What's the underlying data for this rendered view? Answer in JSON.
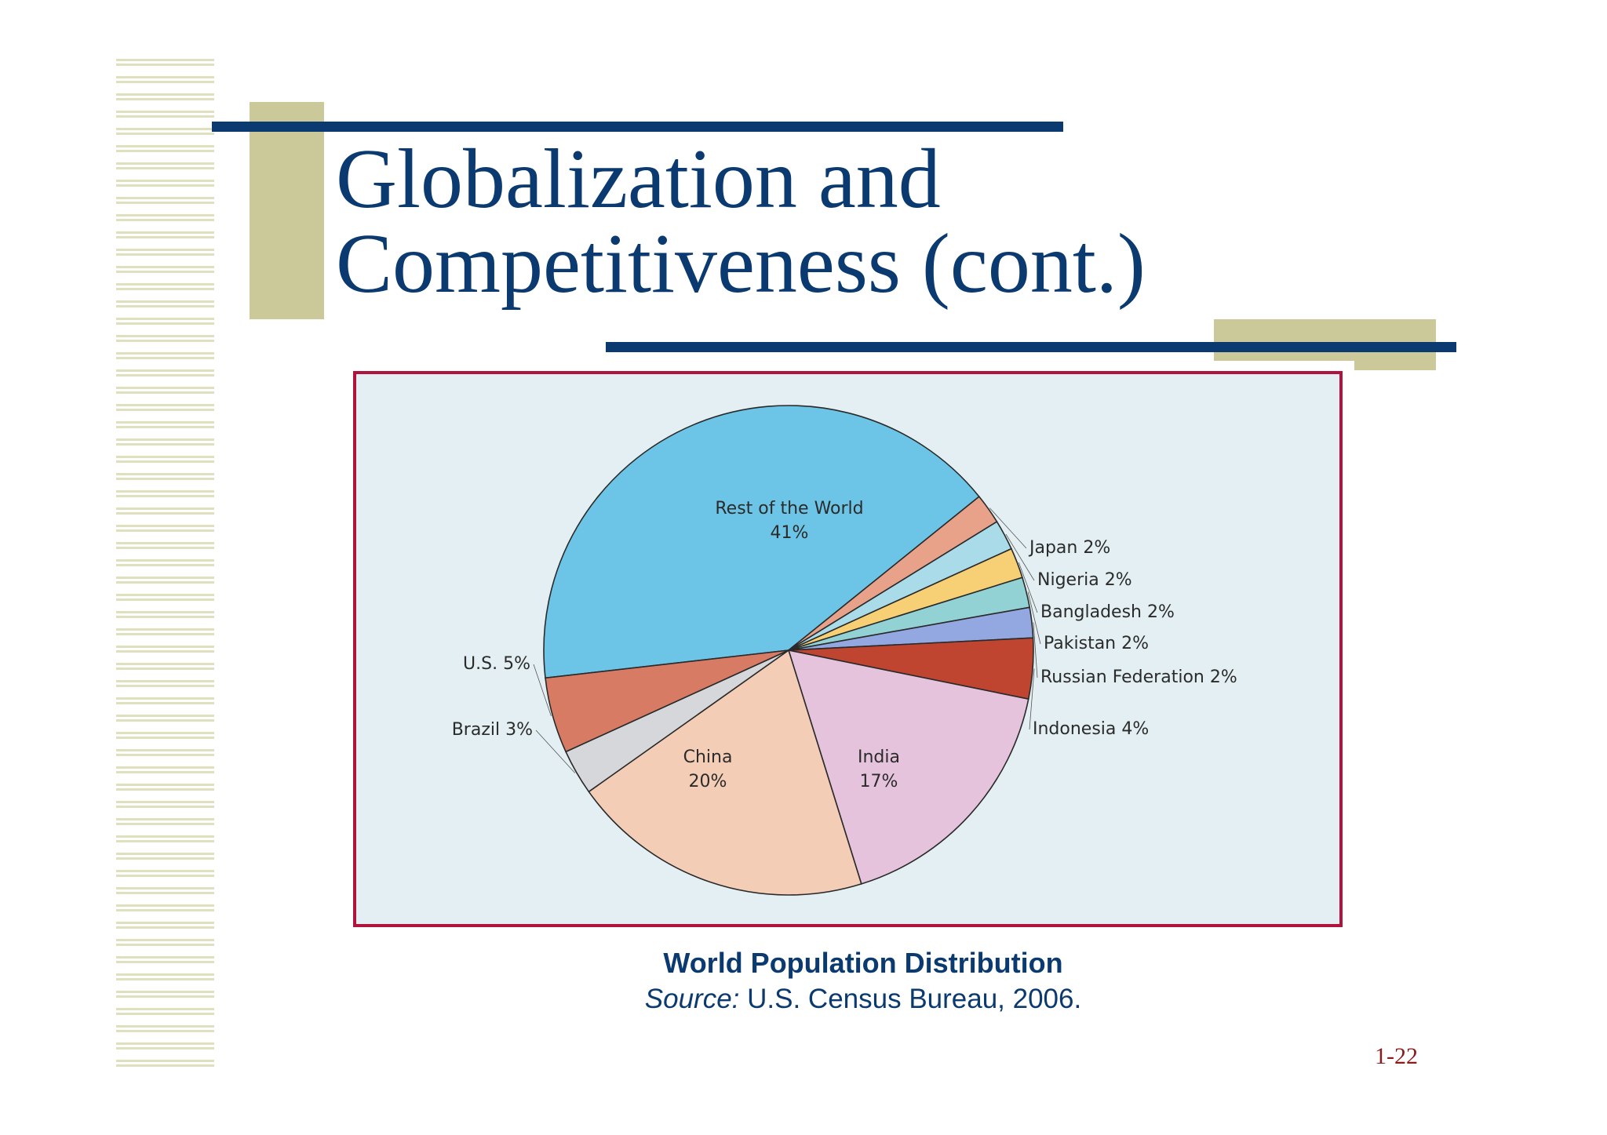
{
  "slide": {
    "title_line1": "Globalization and",
    "title_line2": "Competitiveness (cont.)",
    "caption_title": "World Population Distribution",
    "caption_source_label": "Source:",
    "caption_source_text": " U.S. Census Bureau, 2006.",
    "page_number": "1-22"
  },
  "colors": {
    "title_blue": "#0a3a6f",
    "olive": "#cbc99a",
    "frame_red": "#b0143c",
    "chart_bg": "#e3eff2"
  },
  "chart_data": {
    "type": "pie",
    "title": "World Population Distribution",
    "slices": [
      {
        "name": "Rest of the World",
        "label": "Rest of the World",
        "pct_label": "41%",
        "value": 41,
        "color": "#6cc5e6"
      },
      {
        "name": "Japan",
        "label": "Japan 2%",
        "value": 2,
        "color": "#e8a28a"
      },
      {
        "name": "Nigeria",
        "label": "Nigeria 2%",
        "value": 2,
        "color": "#a9dbe8"
      },
      {
        "name": "Bangladesh",
        "label": "Bangladesh 2%",
        "value": 2,
        "color": "#f7cf74"
      },
      {
        "name": "Pakistan",
        "label": "Pakistan 2%",
        "value": 2,
        "color": "#93d2d4"
      },
      {
        "name": "Russian Federation",
        "label": "Russian Federation 2%",
        "value": 2,
        "color": "#93a7e0"
      },
      {
        "name": "Indonesia",
        "label": "Indonesia 4%",
        "value": 4,
        "color": "#bf4530"
      },
      {
        "name": "India",
        "label": "India",
        "pct_label": "17%",
        "value": 17,
        "color": "#e6c3dc"
      },
      {
        "name": "China",
        "label": "China",
        "pct_label": "20%",
        "value": 20,
        "color": "#f4cdb6"
      },
      {
        "name": "Brazil",
        "label": "Brazil 3%",
        "value": 3,
        "color": "#d5d7da"
      },
      {
        "name": "U.S.",
        "label": "U.S. 5%",
        "value": 5,
        "color": "#d87b64"
      }
    ]
  }
}
